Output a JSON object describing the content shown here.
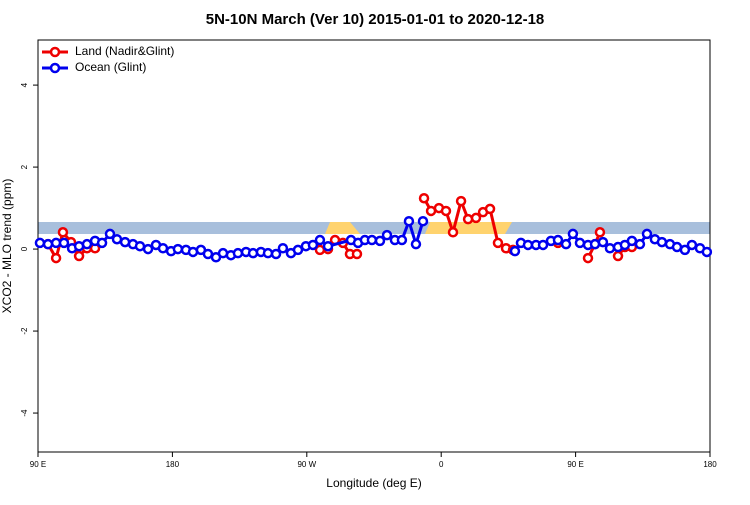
{
  "chart_data": {
    "type": "line",
    "title": "5N-10N March (Ver 10)   2015-01-01 to 2020-12-18",
    "x_label": "Longitude (deg E)",
    "y_label": "XCO2 - MLO trend (ppm)",
    "xlim": [
      90,
      540
    ],
    "xticks": [
      {
        "value": 90,
        "label": "90 E"
      },
      180,
      {
        "value": 270,
        "label": "90 W"
      },
      {
        "value": 360,
        "label": "0"
      },
      {
        "value": 450,
        "label": "90 E"
      },
      {
        "value": 540,
        "label": "180"
      }
    ],
    "ylim": [
      -4.95,
      5.1
    ],
    "yticks": [
      -4,
      -2,
      0,
      2,
      4
    ],
    "legend": "top-left",
    "series": [
      {
        "name": "Land (Nadir&Glint)",
        "color": "#ee0000",
        "x": [
          96.7,
          102.1,
          106.7,
          112.1,
          117.5,
          122.8,
          128.2,
          130,
          278.8,
          284.2,
          288.9,
          294.2,
          298.9,
          303.6,
          320,
          348.5,
          353.2,
          358.5,
          363.2,
          367.9,
          373.3,
          378,
          383.3,
          388,
          392.7,
          398,
          403.4,
          408.1,
          420,
          438.2,
          445,
          458.3,
          463,
          466.3,
          470,
          478.4,
          483,
          487.7
        ],
        "values": [
          0.12,
          -0.22,
          0.41,
          0.17,
          -0.17,
          0.02,
          0.02,
          null,
          -0.02,
          0,
          0.22,
          0.15,
          -0.12,
          -0.12,
          null,
          1.24,
          0.93,
          1,
          0.93,
          0.41,
          1.17,
          0.73,
          0.76,
          0.9,
          0.98,
          0.15,
          0.02,
          -0.02,
          null,
          0.15,
          null,
          -0.22,
          0.12,
          0.41,
          null,
          -0.17,
          0.05,
          0.05
        ]
      },
      {
        "name": "Ocean (Glint)",
        "color": "#0000ee",
        "x": [
          91.3,
          96.7,
          102.1,
          107.4,
          112.8,
          117.5,
          122.8,
          128.2,
          132.9,
          138.2,
          142.9,
          148.3,
          153.6,
          158.3,
          163.7,
          169,
          173.7,
          179.1,
          183.7,
          189.1,
          193.8,
          199.1,
          203.8,
          209.2,
          213.9,
          219.2,
          223.9,
          229.3,
          234,
          239.3,
          244,
          249.4,
          254,
          259.4,
          264.1,
          269.4,
          274.1,
          278.8,
          284.2,
          299.6,
          304.3,
          308.9,
          313.6,
          319,
          323.7,
          329,
          333.7,
          338.4,
          343.1,
          347.8,
          360,
          409.4,
          413.4,
          418.1,
          423.5,
          428.2,
          433.5,
          438.2,
          443.6,
          448.2,
          452.9,
          458.3,
          463,
          468.3,
          473,
          478.4,
          483,
          487.7,
          493.1,
          497.8,
          503.1,
          507.8,
          513.2,
          517.9,
          523.2,
          527.9,
          533.3,
          537.9
        ],
        "values": [
          0.15,
          0.12,
          0.15,
          0.15,
          0.02,
          0.07,
          0.12,
          0.2,
          0.15,
          0.37,
          0.24,
          0.17,
          0.12,
          0.07,
          0,
          0.1,
          0.02,
          -0.05,
          0,
          -0.02,
          -0.07,
          -0.02,
          -0.12,
          -0.2,
          -0.1,
          -0.15,
          -0.1,
          -0.07,
          -0.1,
          -0.07,
          -0.1,
          -0.12,
          0.02,
          -0.1,
          -0.02,
          0.07,
          0.1,
          0.22,
          0.07,
          0.22,
          0.15,
          0.22,
          0.22,
          0.2,
          0.34,
          0.22,
          0.22,
          0.68,
          0.12,
          0.68,
          null,
          -0.05,
          0.15,
          0.1,
          0.1,
          0.1,
          0.2,
          0.22,
          0.12,
          0.37,
          0.15,
          0.1,
          0.12,
          0.17,
          0.02,
          0.05,
          0.1,
          0.2,
          0.12,
          0.37,
          0.24,
          0.17,
          0.12,
          0.05,
          -0.02,
          0.1,
          0.02,
          -0.07
        ]
      }
    ]
  }
}
